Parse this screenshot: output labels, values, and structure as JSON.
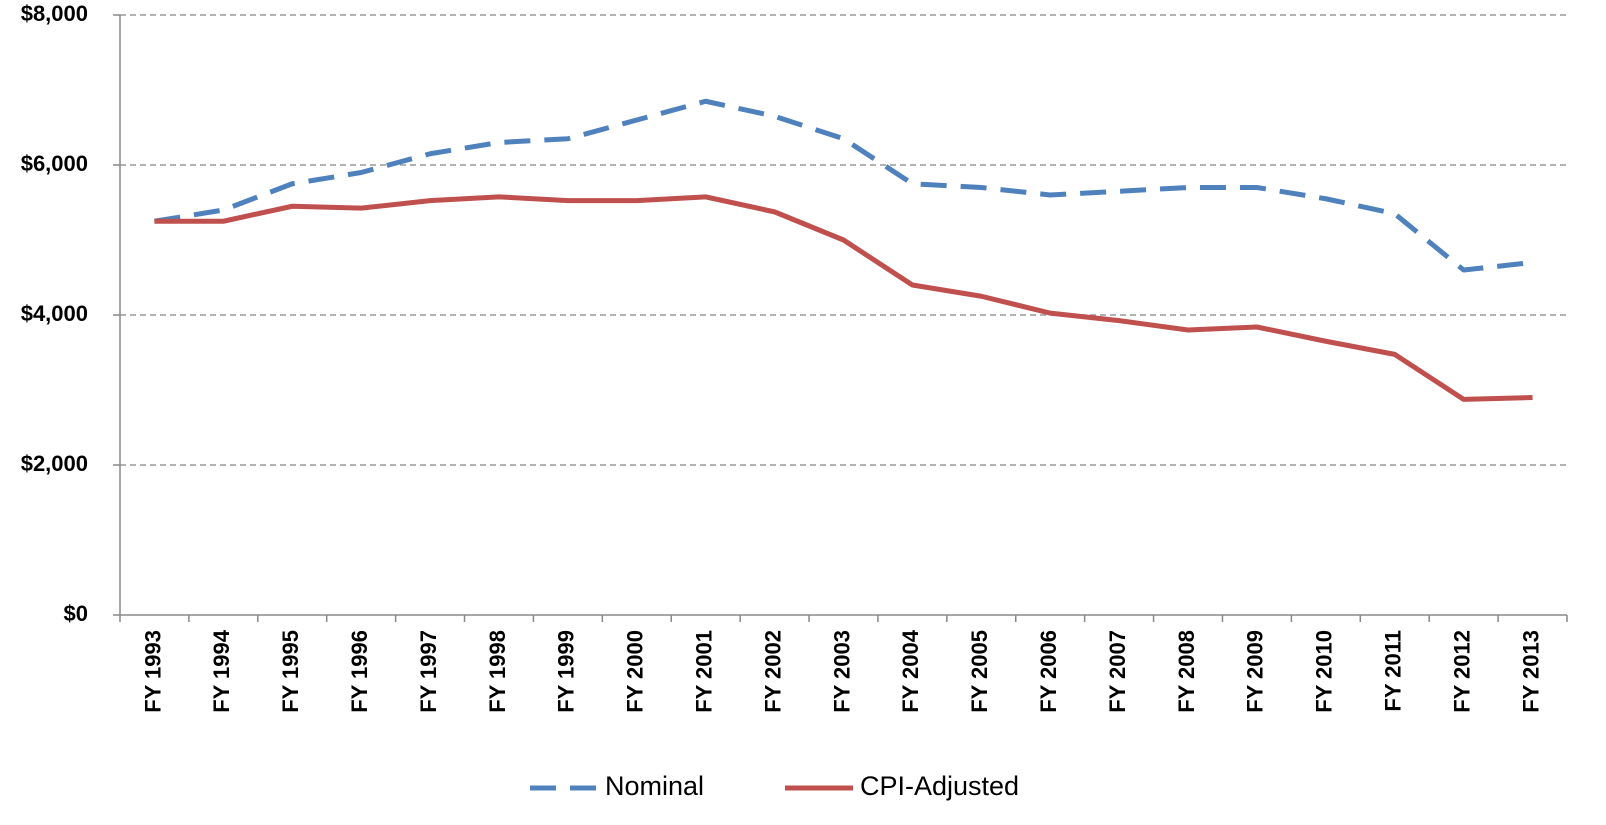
{
  "chart_data": {
    "type": "line",
    "categories": [
      "FY 1993",
      "FY 1994",
      "FY 1995",
      "FY 1996",
      "FY 1997",
      "FY 1998",
      "FY 1999",
      "FY 2000",
      "FY 2001",
      "FY 2002",
      "FY 2003",
      "FY 2004",
      "FY 2005",
      "FY 2006",
      "FY 2007",
      "FY 2008",
      "FY 2009",
      "FY 2010",
      "FY 2011",
      "FY 2012",
      "FY 2013"
    ],
    "series": [
      {
        "name": "Nominal",
        "color": "#4f81bd",
        "line_style": "dashed",
        "values": [
          5250,
          5400,
          5750,
          5900,
          6150,
          6300,
          6350,
          6600,
          6850,
          6650,
          6350,
          5750,
          5700,
          5600,
          5650,
          5700,
          5700,
          5550,
          5350,
          4600,
          4700
        ]
      },
      {
        "name": "CPI-Adjusted",
        "color": "#c0504d",
        "line_style": "solid",
        "values": [
          5250,
          5250,
          5450,
          5425,
          5525,
          5575,
          5525,
          5525,
          5575,
          5375,
          5000,
          4400,
          4250,
          4025,
          3925,
          3800,
          3840,
          3650,
          3475,
          2875,
          2900
        ]
      }
    ],
    "ylim": [
      0,
      8000
    ],
    "yticks": [
      {
        "value": 0,
        "label": "$0"
      },
      {
        "value": 2000,
        "label": "$2,000"
      },
      {
        "value": 4000,
        "label": "$4,000"
      },
      {
        "value": 6000,
        "label": "$6,000"
      },
      {
        "value": 8000,
        "label": "$8,000"
      }
    ],
    "grid": true,
    "legend": "bottom"
  }
}
